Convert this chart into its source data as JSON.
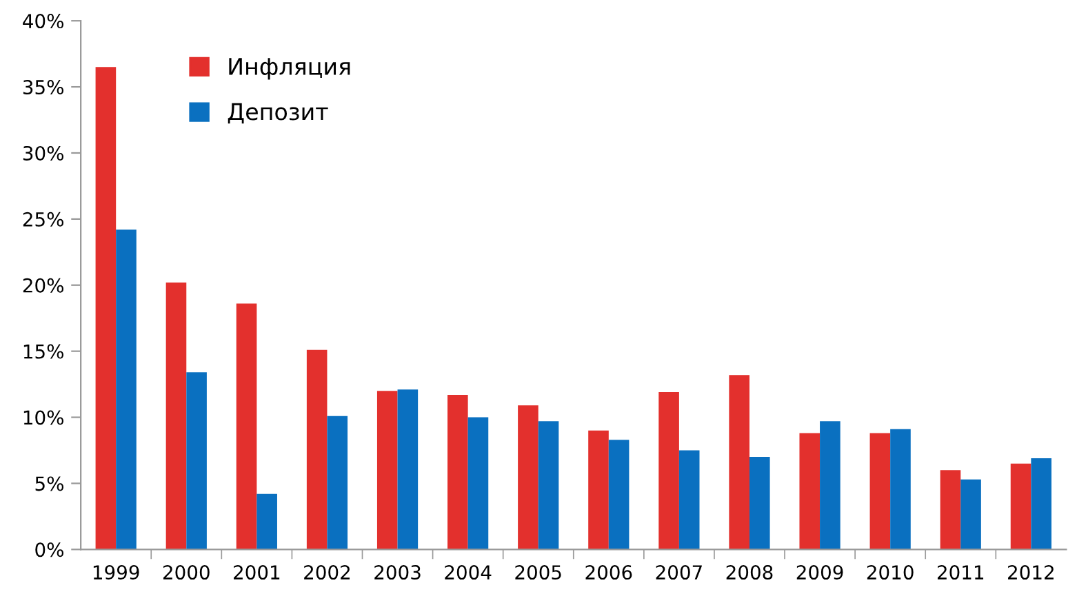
{
  "chart_data": {
    "type": "bar",
    "categories": [
      "1999",
      "2000",
      "2001",
      "2002",
      "2003",
      "2004",
      "2005",
      "2006",
      "2007",
      "2008",
      "2009",
      "2010",
      "2011",
      "2012"
    ],
    "series": [
      {
        "name": "Инфляция",
        "color": "#e3302d",
        "values": [
          36.5,
          20.2,
          18.6,
          15.1,
          12.0,
          11.7,
          10.9,
          9.0,
          11.9,
          13.2,
          8.8,
          8.8,
          6.0,
          6.5
        ]
      },
      {
        "name": "Депозит",
        "color": "#0a70c0",
        "values": [
          24.2,
          13.4,
          4.2,
          10.1,
          12.1,
          10.0,
          9.7,
          8.3,
          7.5,
          7.0,
          9.7,
          9.1,
          5.3,
          6.9
        ]
      }
    ],
    "ylim": [
      0,
      40
    ],
    "yticks": [
      {
        "value": 0,
        "label": "0%"
      },
      {
        "value": 5,
        "label": "5%"
      },
      {
        "value": 10,
        "label": "10%"
      },
      {
        "value": 15,
        "label": "15%"
      },
      {
        "value": 20,
        "label": "20%"
      },
      {
        "value": 25,
        "label": "25%"
      },
      {
        "value": 30,
        "label": "30%"
      },
      {
        "value": 35,
        "label": "35%"
      },
      {
        "value": 40,
        "label": "40%"
      }
    ],
    "grid": false,
    "legend": "top left"
  }
}
